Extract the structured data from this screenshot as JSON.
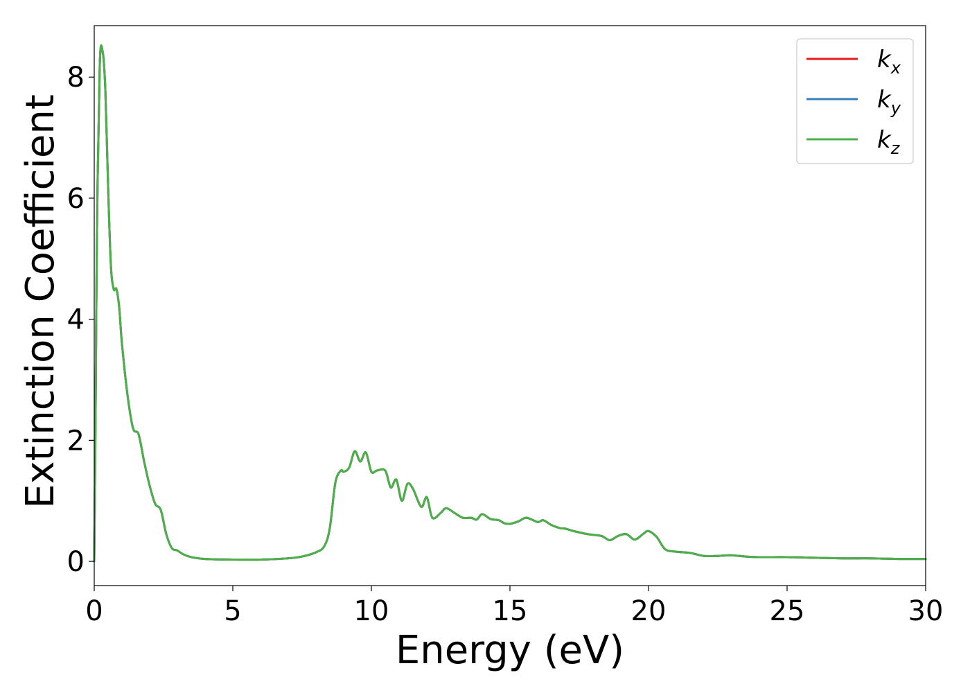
{
  "chart_data": {
    "type": "line",
    "xlabel": "Energy (eV)",
    "ylabel": "Extinction Coefficient",
    "xlim": [
      0,
      30
    ],
    "ylim": [
      -0.4,
      8.85
    ],
    "xticks": [
      0,
      5,
      10,
      15,
      20,
      25,
      30
    ],
    "yticks": [
      0,
      2,
      4,
      6,
      8
    ],
    "xtick_labels": [
      "0",
      "5",
      "10",
      "15",
      "20",
      "25",
      "30"
    ],
    "ytick_labels": [
      "0",
      "2",
      "4",
      "6",
      "8"
    ],
    "grid": false,
    "legend_position": "top-right",
    "x": [
      0,
      0.05,
      0.1,
      0.2,
      0.3,
      0.4,
      0.5,
      0.6,
      0.7,
      0.8,
      0.9,
      1.0,
      1.2,
      1.4,
      1.6,
      1.8,
      2.0,
      2.2,
      2.4,
      2.6,
      2.8,
      3.0,
      3.2,
      3.5,
      4.0,
      5.0,
      6.0,
      7.0,
      7.5,
      8.0,
      8.3,
      8.5,
      8.7,
      8.9,
      9.0,
      9.2,
      9.4,
      9.6,
      9.8,
      10.0,
      10.2,
      10.5,
      10.7,
      10.9,
      11.1,
      11.3,
      11.5,
      11.8,
      12.0,
      12.2,
      12.5,
      12.7,
      13.0,
      13.3,
      13.6,
      13.8,
      14.0,
      14.3,
      14.6,
      14.8,
      15.0,
      15.3,
      15.6,
      16.0,
      16.2,
      16.5,
      16.8,
      17.0,
      17.3,
      17.8,
      18.3,
      18.6,
      18.9,
      19.2,
      19.5,
      19.8,
      20.0,
      20.3,
      20.6,
      21.0,
      21.5,
      22.0,
      22.5,
      23.0,
      23.5,
      24.0,
      25.0,
      26.0,
      27.0,
      28.0,
      29.0,
      30.0
    ],
    "series": [
      {
        "name": "k_x",
        "color": "#e41a1c",
        "values": [
          0,
          2.5,
          5.5,
          8.2,
          8.43,
          7.8,
          6.2,
          4.9,
          4.5,
          4.5,
          4.2,
          3.6,
          2.75,
          2.2,
          2.1,
          1.65,
          1.25,
          0.95,
          0.85,
          0.45,
          0.22,
          0.18,
          0.12,
          0.07,
          0.04,
          0.03,
          0.03,
          0.05,
          0.08,
          0.15,
          0.25,
          0.55,
          1.3,
          1.5,
          1.48,
          1.55,
          1.82,
          1.65,
          1.8,
          1.48,
          1.5,
          1.5,
          1.22,
          1.35,
          1.0,
          1.28,
          1.2,
          0.9,
          1.06,
          0.72,
          0.8,
          0.88,
          0.8,
          0.72,
          0.72,
          0.69,
          0.78,
          0.7,
          0.68,
          0.63,
          0.62,
          0.66,
          0.72,
          0.65,
          0.68,
          0.6,
          0.55,
          0.54,
          0.5,
          0.45,
          0.42,
          0.35,
          0.42,
          0.45,
          0.36,
          0.45,
          0.5,
          0.4,
          0.2,
          0.16,
          0.14,
          0.09,
          0.09,
          0.1,
          0.08,
          0.07,
          0.07,
          0.06,
          0.05,
          0.05,
          0.04,
          0.04
        ]
      },
      {
        "name": "k_y",
        "color": "#377eb8",
        "values": [
          0,
          2.5,
          5.5,
          8.2,
          8.43,
          7.8,
          6.2,
          4.9,
          4.5,
          4.5,
          4.2,
          3.6,
          2.75,
          2.2,
          2.1,
          1.65,
          1.25,
          0.95,
          0.85,
          0.45,
          0.22,
          0.18,
          0.12,
          0.07,
          0.04,
          0.03,
          0.03,
          0.05,
          0.08,
          0.15,
          0.25,
          0.55,
          1.3,
          1.5,
          1.48,
          1.55,
          1.82,
          1.65,
          1.8,
          1.48,
          1.5,
          1.5,
          1.22,
          1.35,
          1.0,
          1.28,
          1.2,
          0.9,
          1.06,
          0.72,
          0.8,
          0.88,
          0.8,
          0.72,
          0.72,
          0.69,
          0.78,
          0.7,
          0.68,
          0.63,
          0.62,
          0.66,
          0.72,
          0.65,
          0.68,
          0.6,
          0.55,
          0.54,
          0.5,
          0.45,
          0.42,
          0.35,
          0.42,
          0.45,
          0.36,
          0.45,
          0.5,
          0.4,
          0.2,
          0.16,
          0.14,
          0.09,
          0.09,
          0.1,
          0.08,
          0.07,
          0.07,
          0.06,
          0.05,
          0.05,
          0.04,
          0.04
        ]
      },
      {
        "name": "k_z",
        "color": "#4daf4a",
        "values": [
          0,
          2.5,
          5.5,
          8.2,
          8.43,
          7.8,
          6.2,
          4.9,
          4.5,
          4.5,
          4.2,
          3.6,
          2.75,
          2.2,
          2.1,
          1.65,
          1.25,
          0.95,
          0.85,
          0.45,
          0.22,
          0.18,
          0.12,
          0.07,
          0.04,
          0.03,
          0.03,
          0.05,
          0.08,
          0.15,
          0.25,
          0.55,
          1.3,
          1.5,
          1.48,
          1.55,
          1.82,
          1.65,
          1.8,
          1.48,
          1.5,
          1.5,
          1.22,
          1.35,
          1.0,
          1.28,
          1.2,
          0.9,
          1.06,
          0.72,
          0.8,
          0.88,
          0.8,
          0.72,
          0.72,
          0.69,
          0.78,
          0.7,
          0.68,
          0.63,
          0.62,
          0.66,
          0.72,
          0.65,
          0.68,
          0.6,
          0.55,
          0.54,
          0.5,
          0.45,
          0.42,
          0.35,
          0.42,
          0.45,
          0.36,
          0.45,
          0.5,
          0.4,
          0.2,
          0.16,
          0.14,
          0.09,
          0.09,
          0.1,
          0.08,
          0.07,
          0.07,
          0.06,
          0.05,
          0.05,
          0.04,
          0.04
        ]
      }
    ],
    "legend": [
      {
        "base": "k",
        "sub": "x",
        "color": "#e41a1c"
      },
      {
        "base": "k",
        "sub": "y",
        "color": "#377eb8"
      },
      {
        "base": "k",
        "sub": "z",
        "color": "#4daf4a"
      }
    ]
  }
}
